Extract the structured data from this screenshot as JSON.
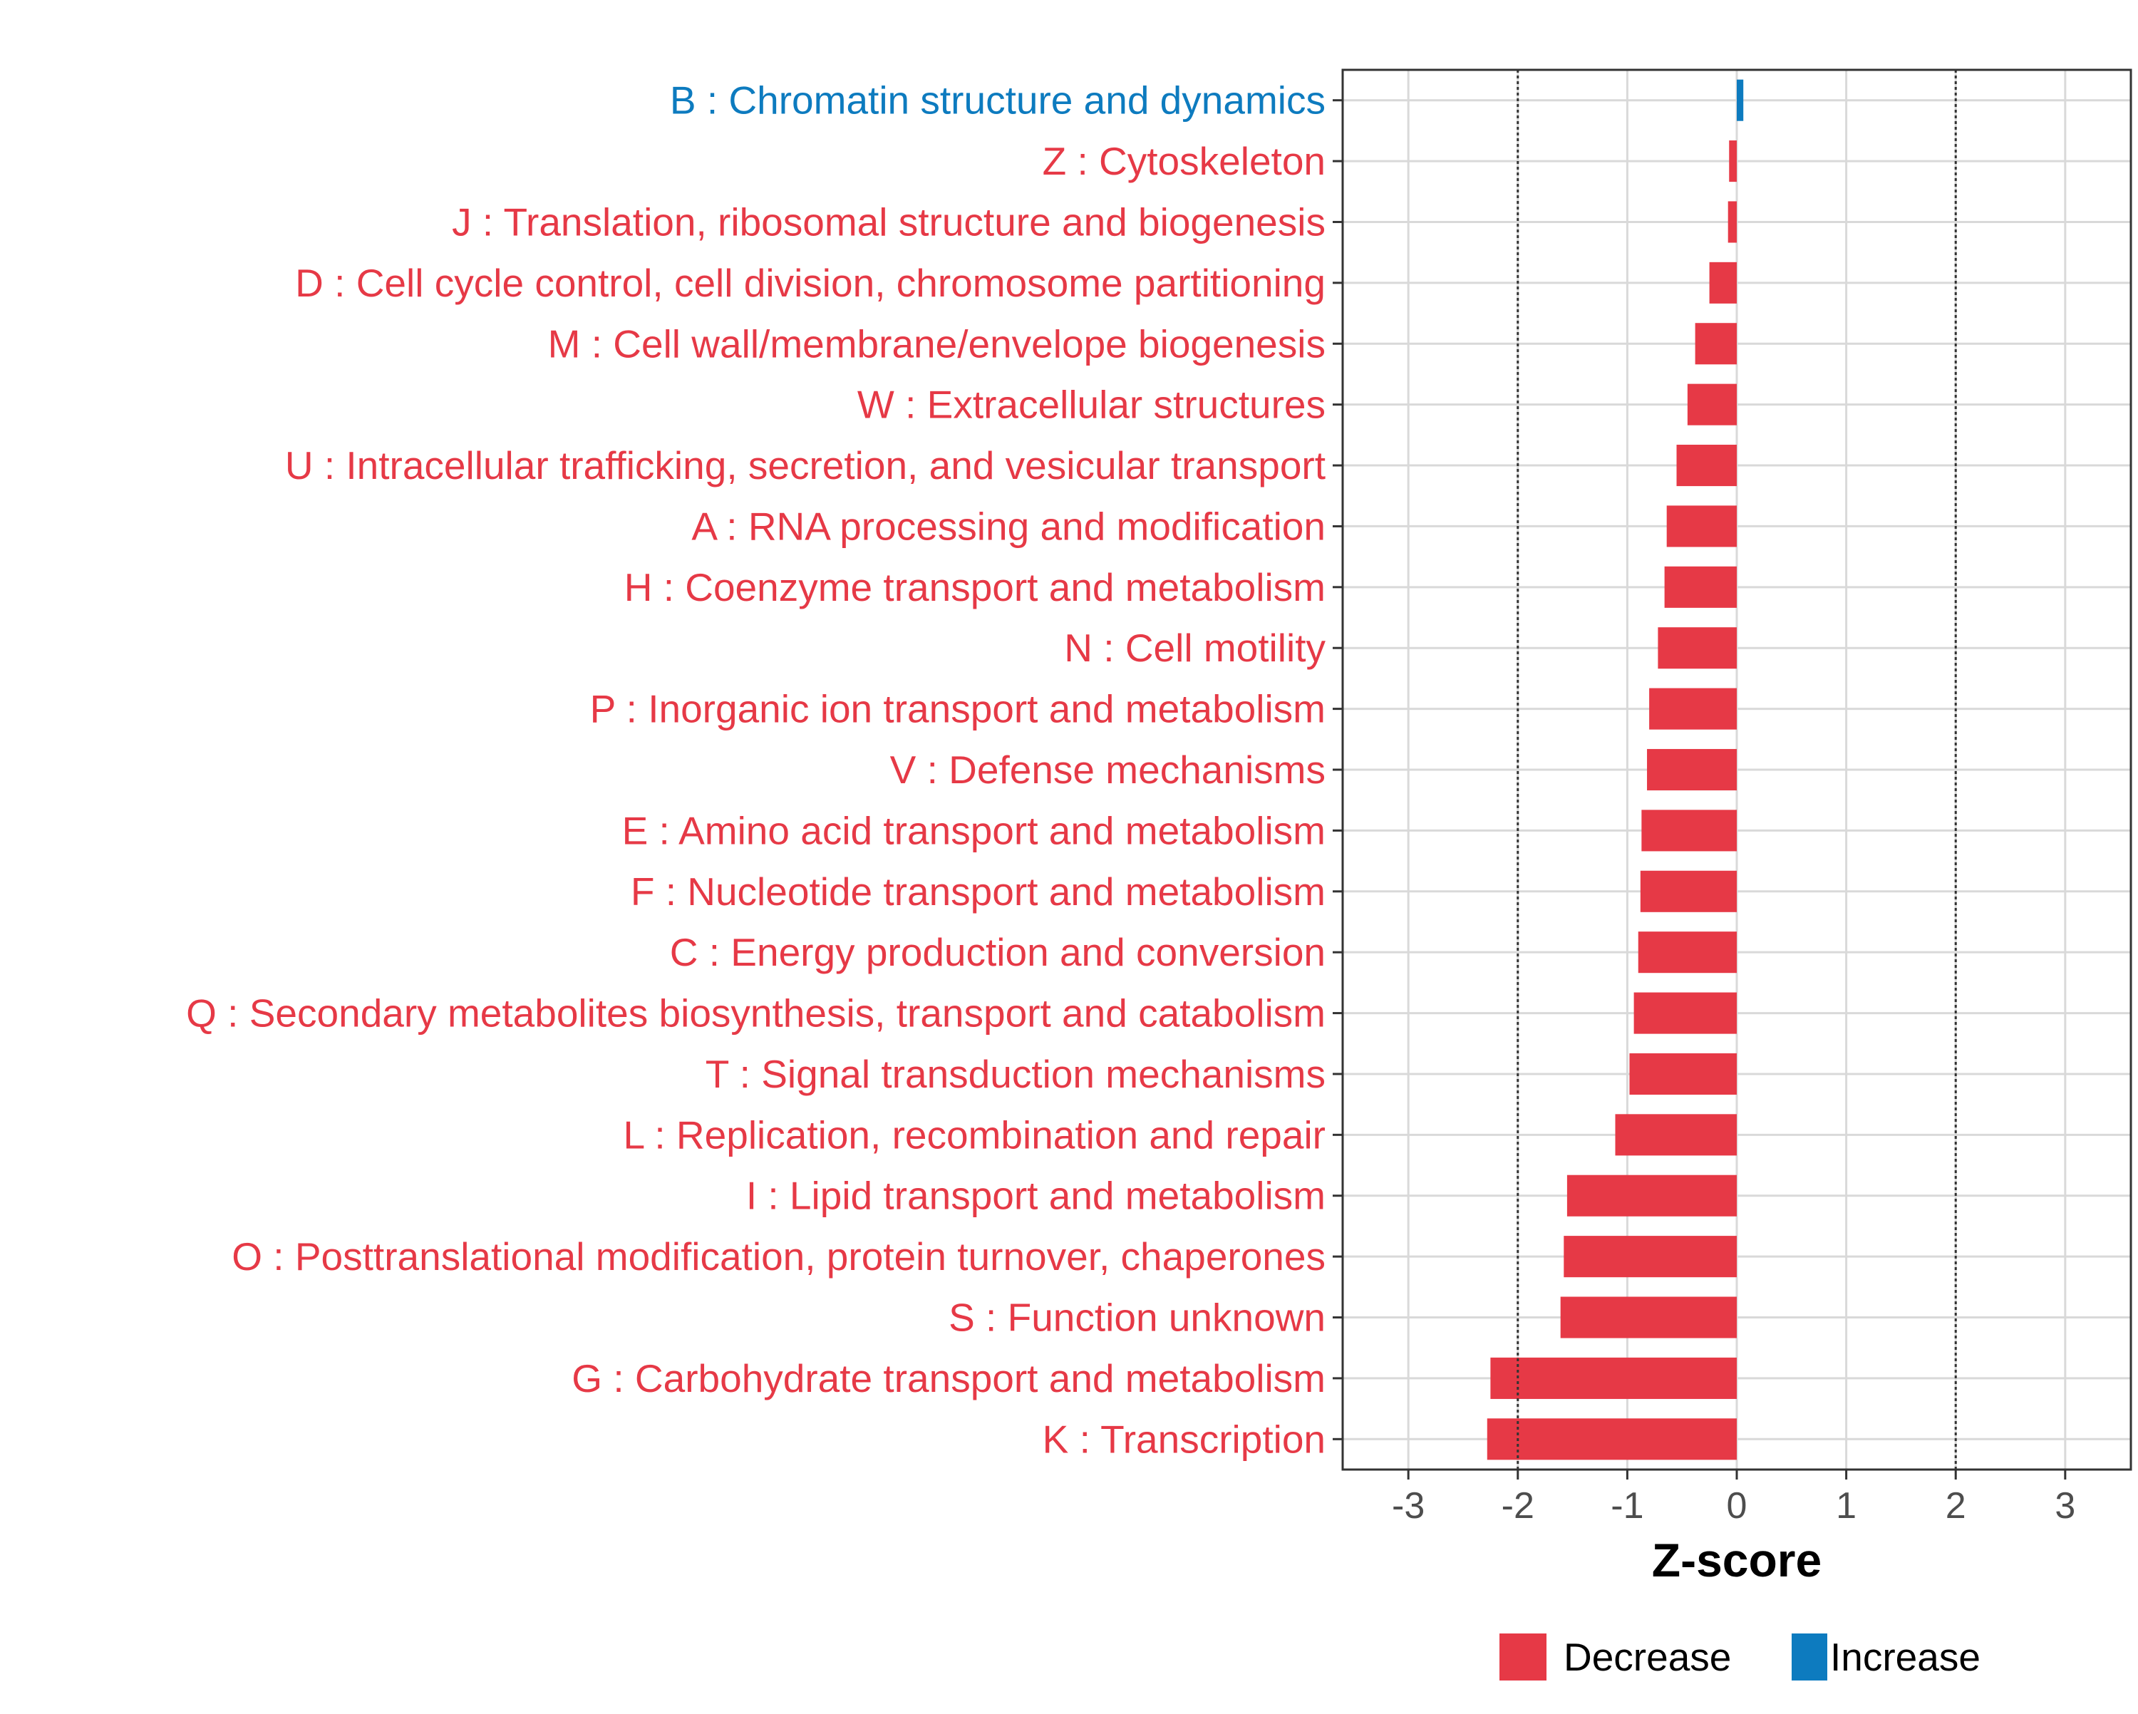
{
  "chart_data": {
    "type": "bar",
    "orientation": "horizontal",
    "xlabel": "Z-score",
    "ylabel": "",
    "xlim": [
      -3.6,
      3.6
    ],
    "xticks": [
      -3,
      -2,
      -1,
      0,
      1,
      2,
      3
    ],
    "tick_labels": [
      "-3",
      "-2",
      "-1",
      "0",
      "1",
      "2",
      "3"
    ],
    "reference_lines": [
      -2,
      2
    ],
    "grid": true,
    "legend_position": "bottom",
    "colors": {
      "Decrease": "#e63946",
      "Increase": "#0d7bbf"
    },
    "legend": [
      {
        "label": "Decrease",
        "color": "#e63946"
      },
      {
        "label": "Increase",
        "color": "#0d7bbf"
      }
    ],
    "categories": [
      "B : Chromatin structure and dynamics",
      "Z : Cytoskeleton",
      "J : Translation, ribosomal structure and biogenesis",
      "D : Cell cycle control, cell division, chromosome partitioning",
      "M : Cell wall/membrane/envelope biogenesis",
      "W : Extracellular structures",
      "U : Intracellular trafficking, secretion, and vesicular transport",
      "A : RNA processing and modification",
      "H : Coenzyme transport and metabolism",
      "N : Cell motility",
      "P : Inorganic ion transport and metabolism",
      "V : Defense mechanisms",
      "E : Amino acid transport and metabolism",
      "F : Nucleotide transport and metabolism",
      "C : Energy production and conversion",
      "Q : Secondary metabolites biosynthesis, transport and catabolism",
      "T : Signal transduction mechanisms",
      "L : Replication, recombination and repair",
      "I : Lipid transport and metabolism",
      "O : Posttranslational modification, protein turnover, chaperones",
      "S : Function unknown",
      "G : Carbohydrate transport and metabolism",
      "K : Transcription"
    ],
    "values": [
      0.06,
      -0.07,
      -0.08,
      -0.25,
      -0.38,
      -0.45,
      -0.55,
      -0.64,
      -0.66,
      -0.72,
      -0.8,
      -0.82,
      -0.87,
      -0.88,
      -0.9,
      -0.94,
      -0.98,
      -1.11,
      -1.55,
      -1.58,
      -1.61,
      -2.25,
      -2.28
    ],
    "direction": [
      "Increase",
      "Decrease",
      "Decrease",
      "Decrease",
      "Decrease",
      "Decrease",
      "Decrease",
      "Decrease",
      "Decrease",
      "Decrease",
      "Decrease",
      "Decrease",
      "Decrease",
      "Decrease",
      "Decrease",
      "Decrease",
      "Decrease",
      "Decrease",
      "Decrease",
      "Decrease",
      "Decrease",
      "Decrease",
      "Decrease"
    ]
  }
}
